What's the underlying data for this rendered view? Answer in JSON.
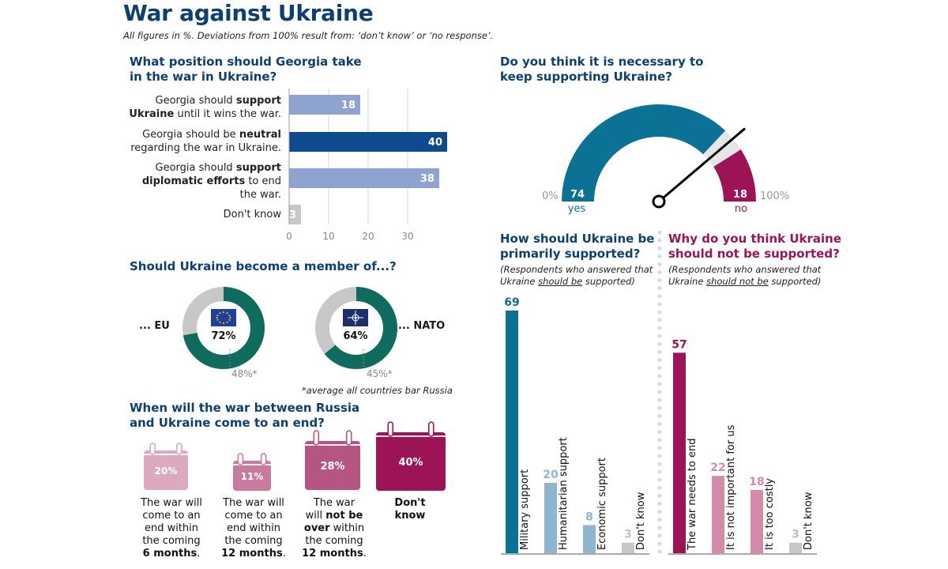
{
  "header": {
    "title": "War against Ukraine",
    "subtitle": "All figures in %. Deviations from 100% result from: ‘don’t know’ or ‘no response’."
  },
  "georgia": {
    "question_l1": "What position should Georgia take",
    "question_l2": "in the war in Ukraine?",
    "labels": [
      {
        "l1_pre": "Georgia should ",
        "l1_bold": "support",
        "l2_bold": "Ukraine",
        "l2_post": " until it wins the war."
      },
      {
        "l1_pre": "Georgia should be ",
        "l1_bold": "neutral",
        "l2_post": "regarding the war in Ukraine."
      },
      {
        "l1_pre": "Georgia should ",
        "l1_bold": "support",
        "l2_bold": "diplomatic efforts",
        "l2_post": " to end",
        "l3": "the war."
      },
      {
        "l1_pre": "Don't know"
      }
    ]
  },
  "membership": {
    "question": "Should Ukraine become a member of...?",
    "eu_label": "... EU",
    "nato_label": "... NATO",
    "eu_value": "72%",
    "nato_value": "64%",
    "eu_avg": "48%*",
    "nato_avg": "45%*",
    "footnote": "*average all countries bar Russia"
  },
  "war_end": {
    "question_l1": "When will the war between Russia",
    "question_l2": "and Ukraine come to an end?",
    "items": [
      {
        "value": "20%",
        "l1": "The war will",
        "l2": "come to an",
        "l3": "end within",
        "l4": "the coming",
        "l5": "6 months",
        "l5_post": "."
      },
      {
        "value": "11%",
        "l1": "The war will",
        "l2": "come to an",
        "l3": "end within",
        "l4": "the coming",
        "l5": "12 months",
        "l5_post": "."
      },
      {
        "value": "28%",
        "l1": "The war",
        "l2_pre": "will ",
        "l2_bold": "not be",
        "l3_bold": "over",
        "l3_post": " within",
        "l4": "the coming",
        "l5": "12 months",
        "l5_post": "."
      },
      {
        "value": "40%",
        "l1": "Don't",
        "l2": "know"
      }
    ],
    "colors": [
      "#dca9bf",
      "#c97a9e",
      "#b45582",
      "#9c1456"
    ]
  },
  "support": {
    "question_l1": "Do you think it is necessary to",
    "question_l2": "keep supporting Ukraine?",
    "min_label": "0%",
    "max_label": "100%",
    "yes_label": "yes",
    "no_label": "no",
    "yes_value": "74",
    "no_value": "18"
  },
  "how": {
    "question_l1": "How should Ukraine be",
    "question_l2": "primarily supported?",
    "note_l1": "(Respondents who answered that",
    "note_l2_pre": "Ukraine ",
    "note_l2_u": "should be",
    "note_l2_post": " supported)"
  },
  "why": {
    "question_l1": "Why do you think Ukraine",
    "question_l2": "should not be supported?",
    "note_l1": "(Respondents who answered that",
    "note_l2_pre": "Ukraine ",
    "note_l2_u": "should not be",
    "note_l2_post": " supported)"
  },
  "chart_data": [
    {
      "type": "bar",
      "orientation": "horizontal",
      "title": "What position should Georgia take in the war in Ukraine?",
      "categories": [
        "Georgia should support Ukraine until it wins the war.",
        "Georgia should be neutral regarding the war in Ukraine.",
        "Georgia should support diplomatic efforts to end the war.",
        "Don't know"
      ],
      "values": [
        18,
        40,
        38,
        3
      ],
      "xticks": [
        0,
        10,
        20,
        30
      ],
      "xlim": [
        0,
        40
      ],
      "colors": [
        "#8ea3cf",
        "#0d4a8f",
        "#8ea3cf",
        "#c8c8c8"
      ],
      "grid": true
    },
    {
      "type": "pie",
      "title": "Should Ukraine become a member of...?",
      "series": [
        {
          "name": "... EU",
          "values": [
            72,
            28
          ],
          "labels": [
            "72%",
            ""
          ]
        },
        {
          "name": "... NATO",
          "values": [
            64,
            36
          ],
          "labels": [
            "64%",
            ""
          ]
        }
      ],
      "averages": {
        "EU": 48,
        "NATO": 45
      },
      "colors": [
        "#0f6b5e",
        "#c8c8c8"
      ]
    },
    {
      "type": "bar",
      "title": "When will the war between Russia and Ukraine come to an end?",
      "categories": [
        "The war will come to an end within the coming 6 months.",
        "The war will come to an end within the coming 12 months.",
        "The war will not be over within the coming 12 months.",
        "Don't know"
      ],
      "values": [
        20,
        11,
        28,
        40
      ]
    },
    {
      "type": "pie",
      "title": "Do you think it is necessary to keep supporting Ukraine?",
      "categories": [
        "yes",
        "",
        "no"
      ],
      "values": [
        74,
        8,
        18
      ],
      "colors": [
        "#0c7295",
        "#e6e6e6",
        "#9c1456"
      ]
    },
    {
      "type": "bar",
      "title": "How should Ukraine be primarily supported?",
      "categories": [
        "Military support",
        "Humanitarian support",
        "Economic support",
        "Don't know"
      ],
      "values": [
        69,
        20,
        8,
        3
      ],
      "colors": [
        "#0c7295",
        "#8fb6d0",
        "#8fb6d0",
        "#c8c8c8"
      ]
    },
    {
      "type": "bar",
      "title": "Why do you think Ukraine should not be supported?",
      "categories": [
        "The war needs to end",
        "It is not important for us",
        "It is too costly",
        "Don't know"
      ],
      "values": [
        57,
        22,
        18,
        3
      ],
      "colors": [
        "#9c1456",
        "#d48aa9",
        "#d48aa9",
        "#c8c8c8"
      ]
    }
  ]
}
